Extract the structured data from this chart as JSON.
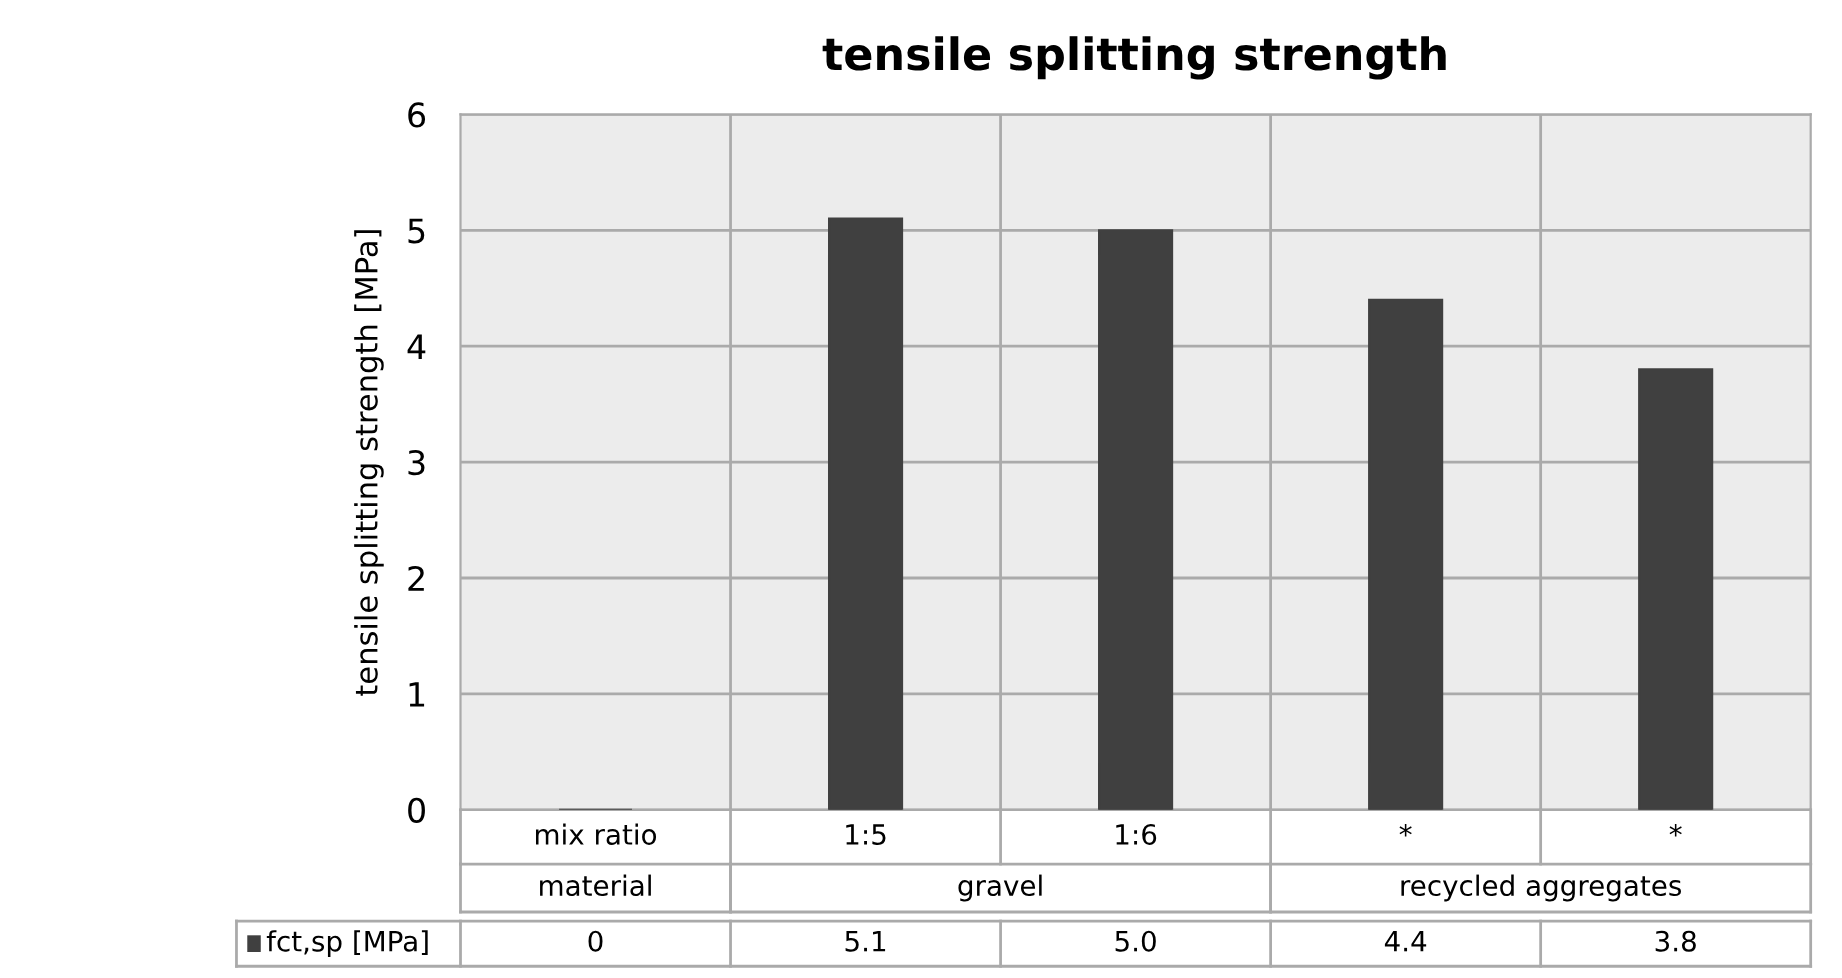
{
  "chart_data": {
    "type": "bar",
    "title": "tensile splitting strength",
    "ylabel": "tensile splitting strength [MPa]",
    "categories": [
      "mix ratio",
      "1:5",
      "1:6",
      "*",
      "*"
    ],
    "annotations": [
      "material",
      "gravel",
      "recycled aggregates"
    ],
    "series": [
      {
        "name": "fct,sp [MPa]",
        "color": "#404040",
        "values": [
          0,
          5.1,
          5.0,
          4.4,
          3.8
        ],
        "value_labels": [
          "0",
          "5.1",
          "5.0",
          "4.4",
          "3.8"
        ]
      }
    ],
    "ylim": [
      0,
      6
    ],
    "yticks": [
      0,
      1,
      2,
      3,
      4,
      5,
      6
    ],
    "grid": true
  }
}
